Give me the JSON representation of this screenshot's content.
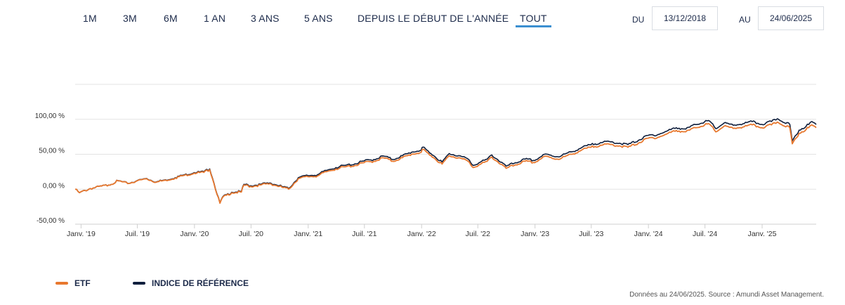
{
  "range_tabs": [
    {
      "label": "1M",
      "active": false
    },
    {
      "label": "3M",
      "active": false
    },
    {
      "label": "6M",
      "active": false
    },
    {
      "label": "1 AN",
      "active": false
    },
    {
      "label": "3 ANS",
      "active": false
    },
    {
      "label": "5 ANS",
      "active": false
    },
    {
      "label": "DEPUIS LE DÉBUT DE L'ANNÉE",
      "active": false
    },
    {
      "label": "TOUT",
      "active": true
    }
  ],
  "date_range": {
    "from_label": "DU",
    "from_value": "13/12/2018",
    "to_label": "AU",
    "to_value": "24/06/2025"
  },
  "colors": {
    "etf": "#e8782e",
    "benchmark": "#0f1f3d",
    "active_tab": "#3b8fd0",
    "grid": "#e3e3e3"
  },
  "chart_data": {
    "type": "line",
    "title": "",
    "xlabel": "",
    "ylabel": "",
    "ylim": [
      -50,
      150
    ],
    "y_ticks": [
      "-50,00 %",
      "0,00 %",
      "50,00 %",
      "100,00 %"
    ],
    "x_ticks": [
      "Janv. '19",
      "Juil. '19",
      "Janv. '20",
      "Juil. '20",
      "Janv. '21",
      "Juil. '21",
      "Janv. '22",
      "Juil. '22",
      "Janv. '23",
      "Juil. '23",
      "Janv. '24",
      "Juil. '24",
      "Janv. '25"
    ],
    "x_range": [
      "2018-12-13",
      "2025-06-24"
    ],
    "grid": true,
    "legend_position": "bottom-left",
    "series": [
      {
        "name": "ETF",
        "points": [
          [
            "2018-12-13",
            0
          ],
          [
            "2018-12-27",
            -5
          ],
          [
            "2019-01-31",
            1
          ],
          [
            "2019-03-31",
            6
          ],
          [
            "2019-04-30",
            12
          ],
          [
            "2019-05-31",
            8
          ],
          [
            "2019-06-30",
            12
          ],
          [
            "2019-07-31",
            15
          ],
          [
            "2019-08-31",
            10
          ],
          [
            "2019-09-30",
            13
          ],
          [
            "2019-10-31",
            16
          ],
          [
            "2019-11-30",
            20
          ],
          [
            "2019-12-31",
            23
          ],
          [
            "2020-01-31",
            24
          ],
          [
            "2020-02-19",
            28
          ],
          [
            "2020-02-28",
            15
          ],
          [
            "2020-03-23",
            -20
          ],
          [
            "2020-03-31",
            -12
          ],
          [
            "2020-04-30",
            -5
          ],
          [
            "2020-05-31",
            -4
          ],
          [
            "2020-06-08",
            6
          ],
          [
            "2020-06-30",
            4
          ],
          [
            "2020-07-31",
            6
          ],
          [
            "2020-08-31",
            8
          ],
          [
            "2020-09-30",
            4
          ],
          [
            "2020-10-30",
            0
          ],
          [
            "2020-11-30",
            15
          ],
          [
            "2020-12-31",
            18
          ],
          [
            "2021-01-31",
            19
          ],
          [
            "2021-02-28",
            25
          ],
          [
            "2021-03-31",
            29
          ],
          [
            "2021-04-30",
            32
          ],
          [
            "2021-05-31",
            34
          ],
          [
            "2021-06-30",
            38
          ],
          [
            "2021-07-31",
            40
          ],
          [
            "2021-08-31",
            45
          ],
          [
            "2021-09-30",
            40
          ],
          [
            "2021-10-31",
            45
          ],
          [
            "2021-11-30",
            50
          ],
          [
            "2021-12-31",
            53
          ],
          [
            "2022-01-05",
            57
          ],
          [
            "2022-01-31",
            48
          ],
          [
            "2022-03-08",
            36
          ],
          [
            "2022-03-31",
            48
          ],
          [
            "2022-04-30",
            45
          ],
          [
            "2022-05-31",
            40
          ],
          [
            "2022-06-16",
            31
          ],
          [
            "2022-07-31",
            40
          ],
          [
            "2022-08-15",
            46
          ],
          [
            "2022-09-30",
            30
          ],
          [
            "2022-10-31",
            35
          ],
          [
            "2022-11-30",
            40
          ],
          [
            "2022-12-31",
            38
          ],
          [
            "2023-01-31",
            47
          ],
          [
            "2023-03-15",
            43
          ],
          [
            "2023-04-30",
            50
          ],
          [
            "2023-05-31",
            56
          ],
          [
            "2023-06-30",
            60
          ],
          [
            "2023-07-31",
            63
          ],
          [
            "2023-08-31",
            64
          ],
          [
            "2023-09-30",
            62
          ],
          [
            "2023-10-27",
            60
          ],
          [
            "2023-11-30",
            66
          ],
          [
            "2023-12-31",
            73
          ],
          [
            "2024-01-31",
            74
          ],
          [
            "2024-02-29",
            79
          ],
          [
            "2024-03-31",
            84
          ],
          [
            "2024-04-30",
            82
          ],
          [
            "2024-05-31",
            88
          ],
          [
            "2024-06-30",
            92
          ],
          [
            "2024-07-16",
            93
          ],
          [
            "2024-08-05",
            82
          ],
          [
            "2024-08-31",
            90
          ],
          [
            "2024-09-30",
            87
          ],
          [
            "2024-10-31",
            89
          ],
          [
            "2024-11-30",
            92
          ],
          [
            "2024-12-31",
            88
          ],
          [
            "2025-01-31",
            92
          ],
          [
            "2025-02-19",
            96
          ],
          [
            "2025-03-31",
            88
          ],
          [
            "2025-04-08",
            65
          ],
          [
            "2025-04-30",
            80
          ],
          [
            "2025-05-31",
            88
          ],
          [
            "2025-06-10",
            92
          ],
          [
            "2025-06-24",
            88
          ]
        ]
      },
      {
        "name": "INDICE DE RÉFÉRENCE",
        "points": [
          [
            "2018-12-13",
            0
          ],
          [
            "2018-12-27",
            -5
          ],
          [
            "2019-01-31",
            1
          ],
          [
            "2019-03-31",
            6.1
          ],
          [
            "2019-04-30",
            12.2
          ],
          [
            "2019-05-31",
            8.2
          ],
          [
            "2019-06-30",
            12.3
          ],
          [
            "2019-07-31",
            15.4
          ],
          [
            "2019-08-31",
            10.4
          ],
          [
            "2019-09-30",
            13.5
          ],
          [
            "2019-10-31",
            16.6
          ],
          [
            "2019-11-30",
            20.7
          ],
          [
            "2019-12-31",
            23.8
          ],
          [
            "2020-01-31",
            24.9
          ],
          [
            "2020-02-19",
            29
          ],
          [
            "2020-02-28",
            16
          ],
          [
            "2020-03-23",
            -19.5
          ],
          [
            "2020-03-31",
            -11.4
          ],
          [
            "2020-04-30",
            -4.3
          ],
          [
            "2020-05-31",
            -3.2
          ],
          [
            "2020-06-08",
            7
          ],
          [
            "2020-06-30",
            5
          ],
          [
            "2020-07-31",
            7
          ],
          [
            "2020-08-31",
            9
          ],
          [
            "2020-09-30",
            5
          ],
          [
            "2020-10-30",
            1
          ],
          [
            "2020-11-30",
            16.5
          ],
          [
            "2020-12-31",
            19.6
          ],
          [
            "2021-01-31",
            20.7
          ],
          [
            "2021-02-28",
            26.8
          ],
          [
            "2021-03-31",
            31
          ],
          [
            "2021-04-30",
            34.1
          ],
          [
            "2021-05-31",
            36.3
          ],
          [
            "2021-06-30",
            40.4
          ],
          [
            "2021-07-31",
            42.5
          ],
          [
            "2021-08-31",
            47.6
          ],
          [
            "2021-09-30",
            42.6
          ],
          [
            "2021-10-31",
            47.8
          ],
          [
            "2021-11-30",
            53
          ],
          [
            "2021-12-31",
            56.1
          ],
          [
            "2022-01-05",
            60.2
          ],
          [
            "2022-01-31",
            51
          ],
          [
            "2022-03-08",
            38.9
          ],
          [
            "2022-03-31",
            51
          ],
          [
            "2022-04-30",
            48
          ],
          [
            "2022-05-31",
            43
          ],
          [
            "2022-06-16",
            34
          ],
          [
            "2022-07-31",
            43
          ],
          [
            "2022-08-15",
            49
          ],
          [
            "2022-09-30",
            33
          ],
          [
            "2022-10-31",
            38
          ],
          [
            "2022-11-30",
            43
          ],
          [
            "2022-12-31",
            41
          ],
          [
            "2023-01-31",
            50
          ],
          [
            "2023-03-15",
            46.5
          ],
          [
            "2023-04-30",
            53.5
          ],
          [
            "2023-05-31",
            59.5
          ],
          [
            "2023-06-30",
            63.6
          ],
          [
            "2023-07-31",
            66.7
          ],
          [
            "2023-08-31",
            67.8
          ],
          [
            "2023-09-30",
            65.8
          ],
          [
            "2023-10-27",
            63.8
          ],
          [
            "2023-11-30",
            70
          ],
          [
            "2023-12-31",
            77
          ],
          [
            "2024-01-31",
            78
          ],
          [
            "2024-02-29",
            83
          ],
          [
            "2024-03-31",
            88
          ],
          [
            "2024-04-30",
            86
          ],
          [
            "2024-05-31",
            92.5
          ],
          [
            "2024-06-30",
            96.5
          ],
          [
            "2024-07-16",
            97.5
          ],
          [
            "2024-08-05",
            86.5
          ],
          [
            "2024-08-31",
            94.5
          ],
          [
            "2024-09-30",
            91.5
          ],
          [
            "2024-10-31",
            93.6
          ],
          [
            "2024-11-30",
            96.7
          ],
          [
            "2024-12-31",
            92.7
          ],
          [
            "2025-01-31",
            96.8
          ],
          [
            "2025-02-19",
            100.8
          ],
          [
            "2025-03-31",
            92.8
          ],
          [
            "2025-04-08",
            69
          ],
          [
            "2025-04-30",
            84.5
          ],
          [
            "2025-05-31",
            92.6
          ],
          [
            "2025-06-10",
            96.8
          ],
          [
            "2025-06-24",
            92.6
          ]
        ]
      }
    ]
  },
  "legend": {
    "etf_label": "ETF",
    "benchmark_label": "INDICE DE RÉFÉRENCE"
  },
  "footer": {
    "source": "Données au 24/06/2025. Source : Amundi Asset Management."
  }
}
